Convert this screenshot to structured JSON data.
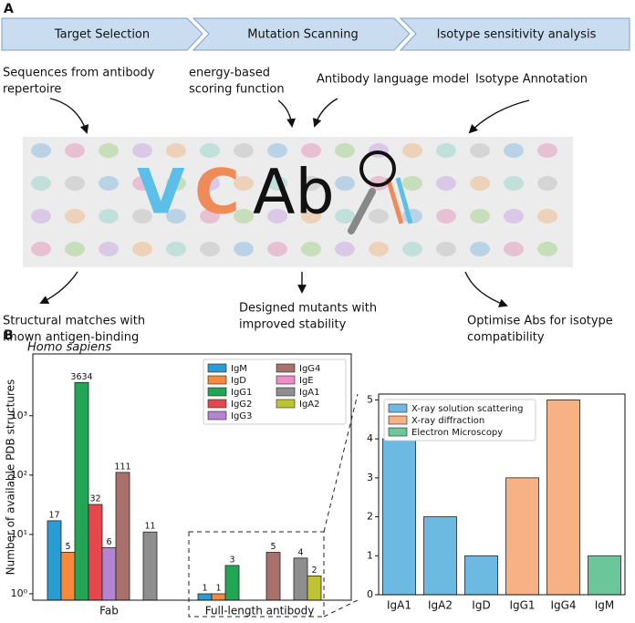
{
  "panel_a": {
    "label": "A",
    "stages": [
      "Target Selection",
      "Mutation Scanning",
      "Isotype sensitivity analysis"
    ],
    "inputs": [
      [
        "Sequences from antibody",
        "repertoire"
      ],
      [
        "energy-based",
        "scoring function"
      ],
      [
        "Antibody language model"
      ],
      [
        "Isotype Annotation"
      ]
    ],
    "logo": [
      "V",
      "C",
      "Ab"
    ],
    "outputs": [
      [
        "Structural matches with",
        "known antigen-binding"
      ],
      [
        "Designed mutants with",
        "improved stability"
      ],
      [
        "Optimise Abs for isotype",
        "compatibility"
      ]
    ]
  },
  "panel_b": {
    "label": "B",
    "subtitle": "Homo sapiens"
  },
  "chart_data": [
    {
      "type": "bar",
      "bar_mode": "grouped",
      "log_scale": true,
      "ylabel": "Number of available PDB structures",
      "categories": [
        "Fab",
        "Full-length antibody"
      ],
      "value_labels_shown": true,
      "legend": "upper right",
      "legend_columns": 2,
      "ylim": [
        0.78,
        11000
      ],
      "yticks": [
        {
          "value": 1,
          "label": "10⁰"
        },
        {
          "value": 10,
          "label": "10¹"
        },
        {
          "value": 100,
          "label": "10²"
        },
        {
          "value": 1000,
          "label": "10³"
        }
      ],
      "series": [
        {
          "name": "IgM",
          "color": "#2a9bd3",
          "values": [
            17,
            1
          ]
        },
        {
          "name": "IgD",
          "color": "#f58a3c",
          "values": [
            5,
            1
          ]
        },
        {
          "name": "IgG1",
          "color": "#22a555",
          "values": [
            3634,
            3
          ]
        },
        {
          "name": "IgG2",
          "color": "#e4474d",
          "values": [
            32,
            null
          ]
        },
        {
          "name": "IgG3",
          "color": "#b384d0",
          "values": [
            6,
            null
          ]
        },
        {
          "name": "IgG4",
          "color": "#a9716b",
          "values": [
            111,
            5
          ]
        },
        {
          "name": "IgE",
          "color": "#ef8cc8",
          "values": [
            null,
            null
          ]
        },
        {
          "name": "IgA1",
          "color": "#8e8e8e",
          "values": [
            11,
            4
          ]
        },
        {
          "name": "IgA2",
          "color": "#bfc232",
          "values": [
            null,
            2
          ]
        }
      ]
    },
    {
      "type": "bar",
      "bar_mode": "single",
      "log_scale": false,
      "legend": "upper left",
      "legend_columns": 1,
      "categories": [
        "IgA1",
        "IgA2",
        "IgD",
        "IgG1",
        "IgG4",
        "IgM"
      ],
      "ylim": [
        0,
        5.15
      ],
      "yticks": [
        0,
        1,
        2,
        3,
        4,
        5
      ],
      "series": [
        {
          "name": "X-ray solution scattering",
          "color": "#6cb9e1",
          "values": [
            4,
            2,
            1,
            null,
            null,
            null
          ]
        },
        {
          "name": "X-ray diffraction",
          "color": "#f6b185",
          "values": [
            null,
            null,
            null,
            3,
            5,
            null
          ]
        },
        {
          "name": "Electron Microscopy",
          "color": "#6bc799",
          "values": [
            null,
            null,
            null,
            null,
            null,
            1
          ]
        }
      ]
    }
  ]
}
